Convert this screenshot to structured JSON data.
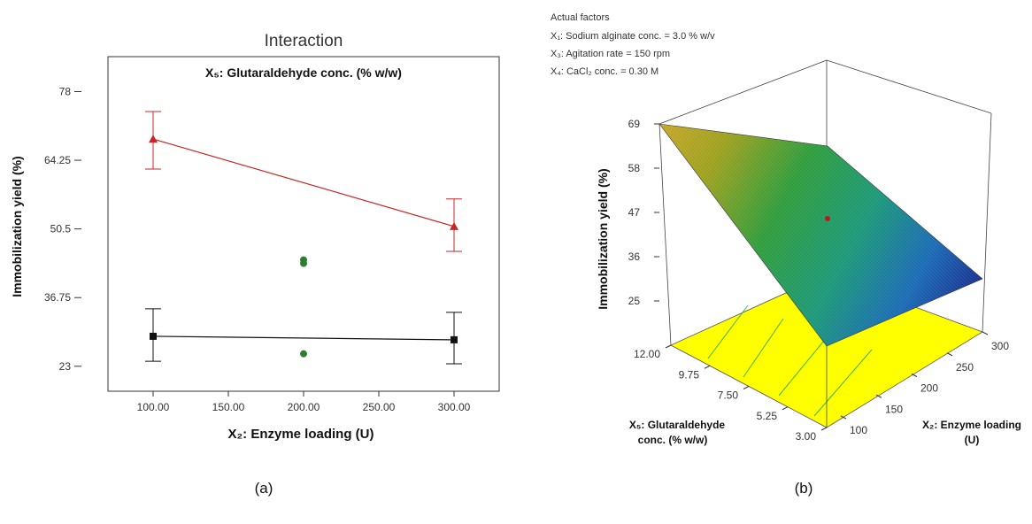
{
  "chart_data": [
    {
      "type": "line",
      "panel_label": "(a)",
      "title": "Interaction",
      "subtitle": "X₅: Glutaraldehyde conc. (% w/w)",
      "xlabel": "X₂: Enzyme loading (U)",
      "ylabel": "Immobilization yield (%)",
      "xlim": [
        70,
        330
      ],
      "ylim": [
        18,
        85
      ],
      "xticks": [
        "100.00",
        "150.00",
        "200.00",
        "250.00",
        "300.00"
      ],
      "yticks": [
        "23",
        "36.75",
        "50.5",
        "64.25",
        "78"
      ],
      "grid": false,
      "series": [
        {
          "marker": "triangle",
          "color": "#c62828",
          "x": [
            100,
            300
          ],
          "y": [
            68.5,
            51
          ],
          "err_low": [
            62.5,
            46
          ],
          "err_high": [
            74,
            56.5
          ]
        },
        {
          "marker": "square",
          "color": "#111111",
          "x": [
            100,
            300
          ],
          "y": [
            29,
            28.3
          ],
          "err_low": [
            24,
            23.5
          ],
          "err_high": [
            34.5,
            33.8
          ]
        }
      ],
      "points": [
        {
          "x": 200,
          "y": 44.3,
          "color": "#2e7d32"
        },
        {
          "x": 200,
          "y": 43.6,
          "color": "#2e7d32"
        },
        {
          "x": 200,
          "y": 25.5,
          "color": "#2e7d32"
        }
      ]
    },
    {
      "type": "surface",
      "panel_label": "(b)",
      "factors_title": "Actual factors",
      "factors": [
        "X₁: Sodium alginate conc. = 3.0 % w/v",
        "X₃: Agitation rate = 150 rpm",
        "X₄: CaCl₂ conc. = 0.30 M"
      ],
      "zlabel": "Immobilization yield (%)",
      "xlabel_line1": "X₅: Glutaraldehyde",
      "xlabel_line2": "conc. (% w/w)",
      "ylabel_line1": "X₂: Enzyme loading",
      "ylabel_line2": "(U)",
      "zticks": [
        "69",
        "58",
        "47",
        "36",
        "25"
      ],
      "xticks": [
        "12.00",
        "9.75",
        "7.50",
        "5.25",
        "3.00"
      ],
      "yticks": [
        "100",
        "150",
        "200",
        "250",
        "300"
      ],
      "zlim": [
        25,
        69
      ],
      "surface_corners": [
        {
          "x5": 12.0,
          "x2": 100,
          "z": 69
        },
        {
          "x5": 12.0,
          "x2": 300,
          "z": 55
        },
        {
          "x5": 3.0,
          "x2": 300,
          "z": 30
        },
        {
          "x5": 3.0,
          "x2": 100,
          "z": 25
        }
      ],
      "colormap": [
        "#1a237e",
        "#1565c0",
        "#00897b",
        "#2e7d32",
        "#9e9d24",
        "#f9a825"
      ],
      "floor_color": "#ffff00"
    }
  ]
}
